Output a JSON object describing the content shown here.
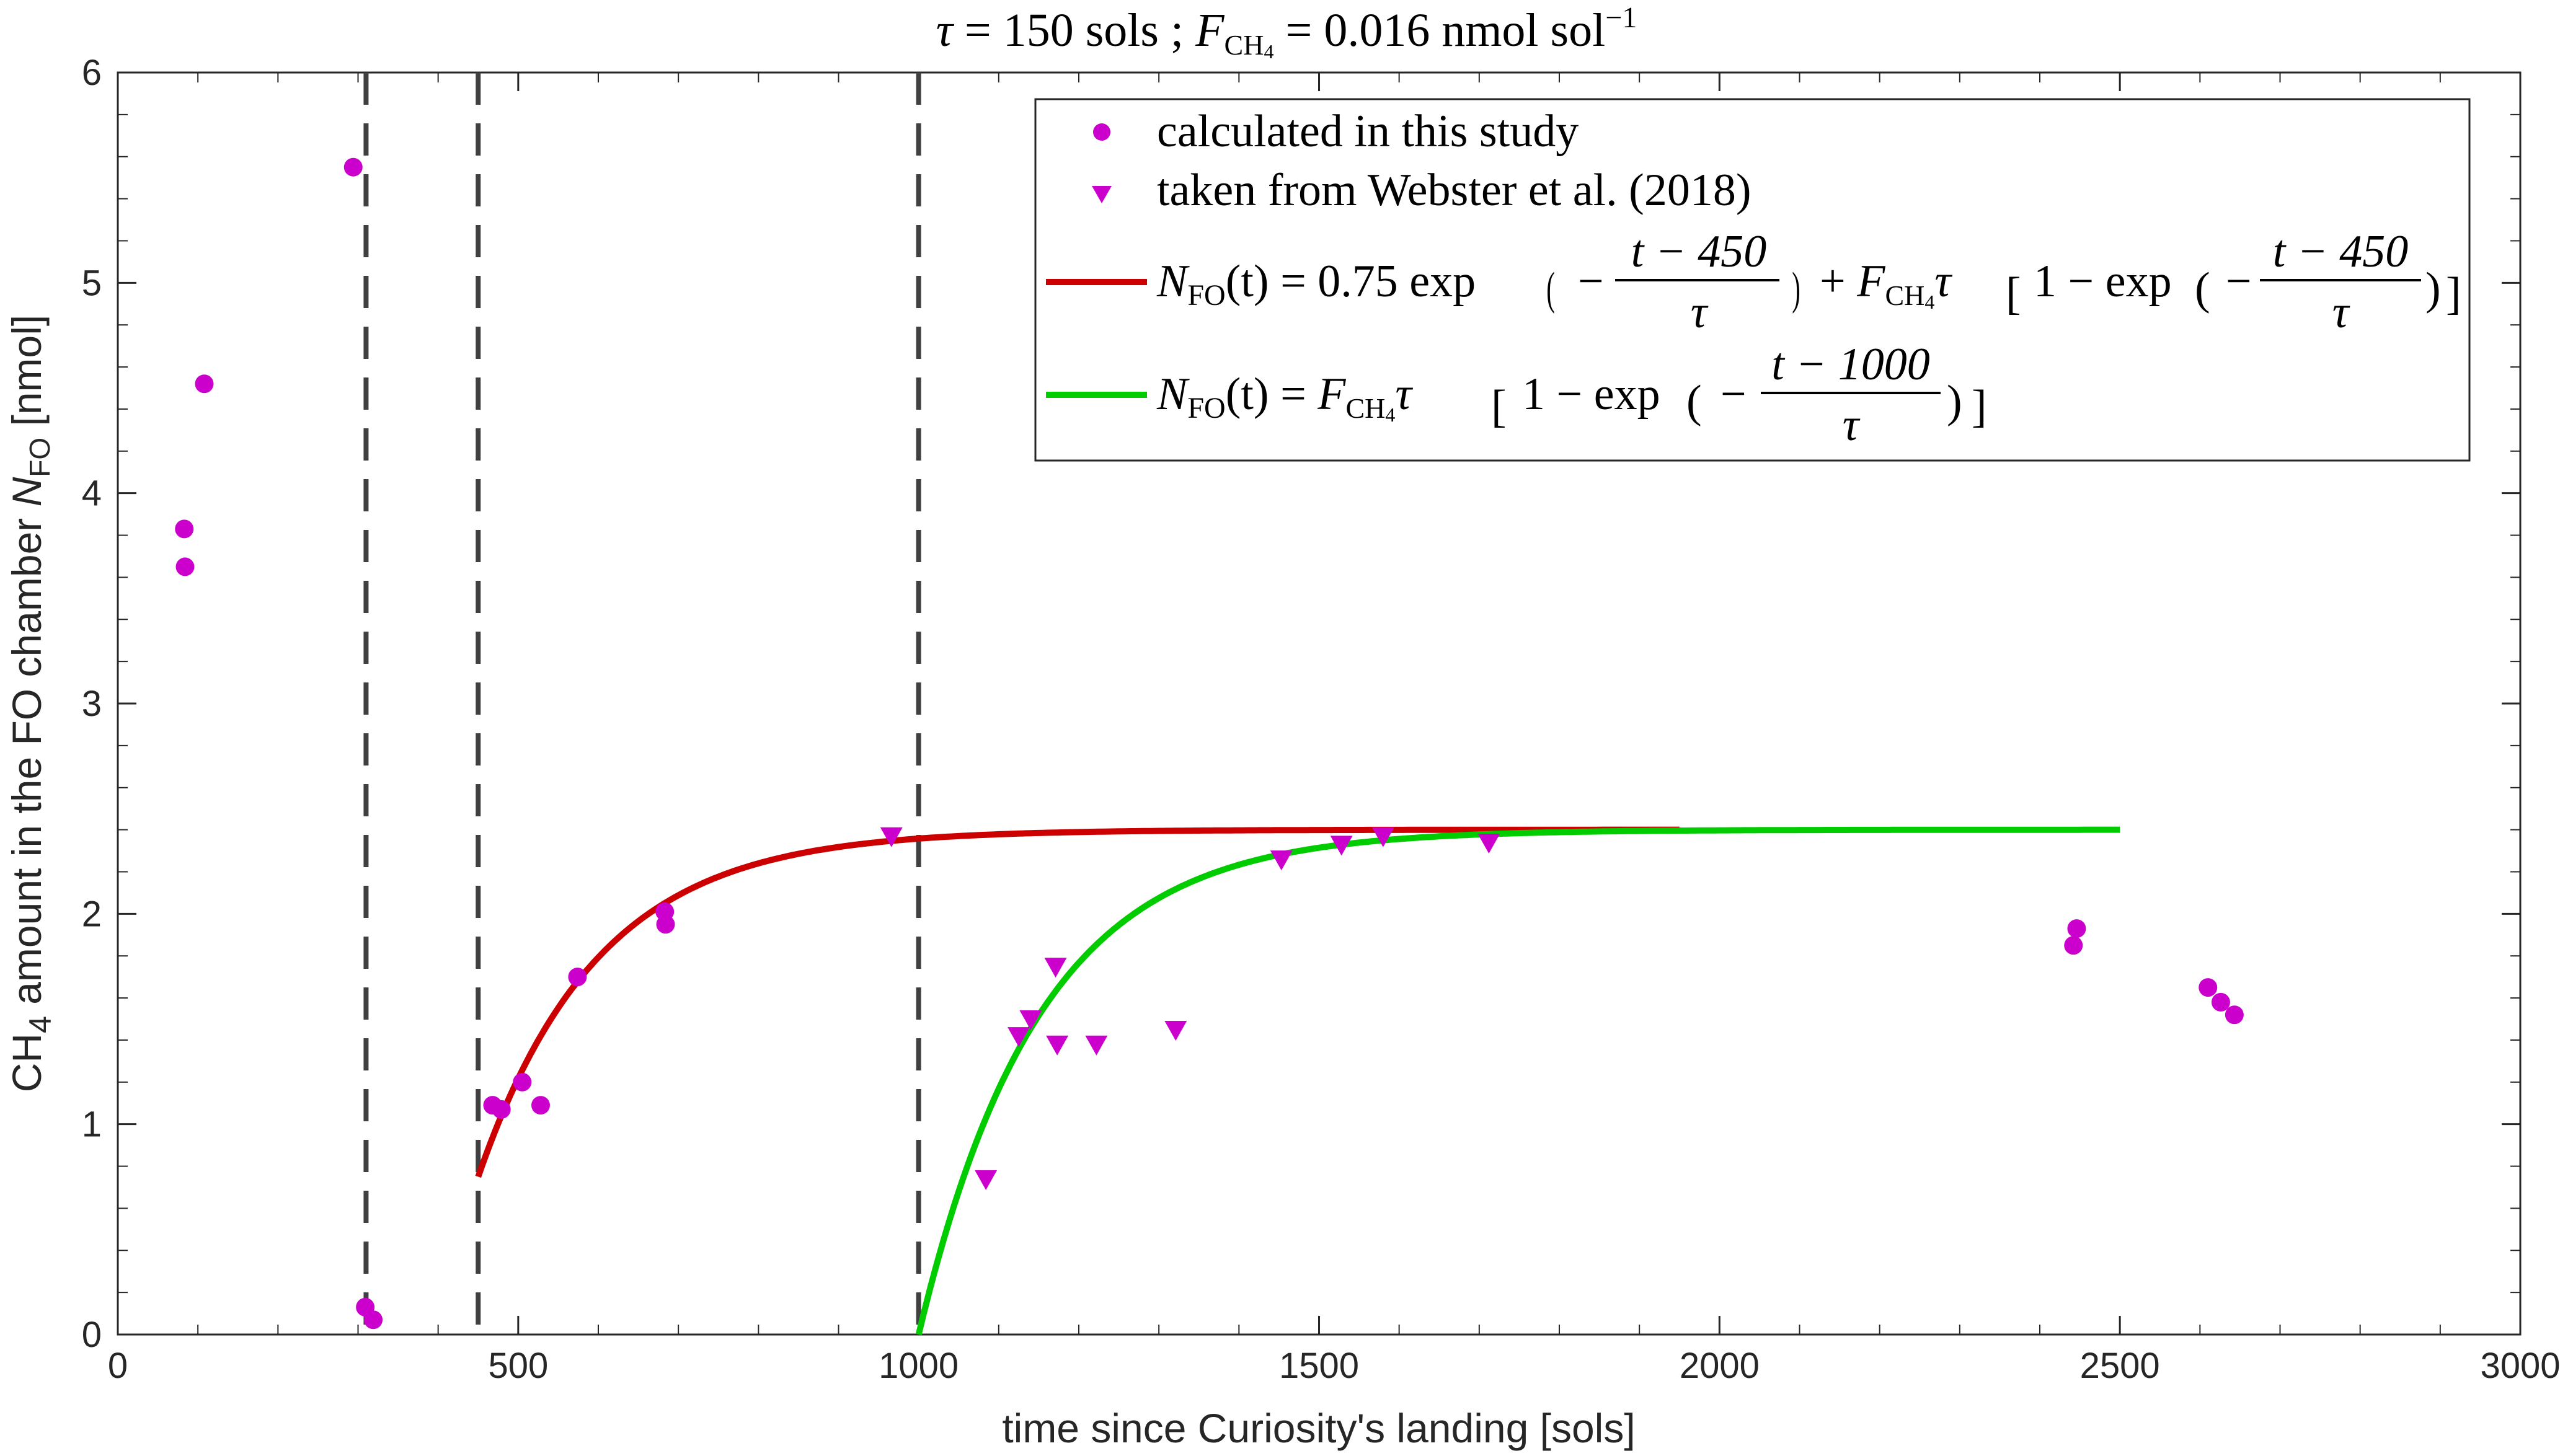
{
  "chart_data": {
    "type": "scatter",
    "title": "τ = 150 sols ;  F_CH4 = 0.016 nmol sol⁻¹",
    "title_parts": {
      "tau": "τ",
      "eq_sols": " = 150 sols ;  ",
      "F": "F",
      "sub": "CH",
      "subsub": "4",
      "eq_rate": " = 0.016 nmol sol",
      "sup": "−1"
    },
    "xlabel": "time since Curiosity's landing [sols]",
    "ylabel": {
      "pre": "CH",
      "sub": "4",
      "mid": " amount in the FO chamber ",
      "N": "N",
      "nsub": "FO",
      "post": " [nmol]"
    },
    "xlim": [
      0,
      3000
    ],
    "ylim": [
      0,
      6
    ],
    "xticks": [
      0,
      500,
      1000,
      1500,
      2000,
      2500,
      3000
    ],
    "yticks": [
      0,
      1,
      2,
      3,
      4,
      5,
      6
    ],
    "grid": false,
    "legend_placement": "top-right",
    "vlines": [
      310,
      450,
      1000
    ],
    "series": [
      {
        "name": "calculated in this study",
        "marker": "circle",
        "color": "#cc00cc",
        "x": [
          83,
          84,
          108,
          294,
          309,
          319,
          468,
          479,
          505,
          528,
          574,
          683,
          684,
          2442,
          2446,
          2610,
          2626,
          2643
        ],
        "y": [
          3.83,
          3.65,
          4.52,
          5.55,
          0.13,
          0.07,
          1.09,
          1.07,
          1.2,
          1.09,
          1.7,
          2.01,
          1.95,
          1.85,
          1.93,
          1.65,
          1.58,
          1.52
        ]
      },
      {
        "name": "taken from Webster et al. (2018)",
        "marker": "triangle-down",
        "color": "#cc00cc",
        "x": [
          966,
          1084,
          1125,
          1140,
          1171,
          1173,
          1222,
          1321,
          1453,
          1528,
          1580,
          1712
        ],
        "y": [
          2.37,
          0.74,
          1.42,
          1.5,
          1.75,
          1.38,
          1.38,
          1.45,
          2.26,
          2.33,
          2.37,
          2.34
        ]
      }
    ],
    "curves": [
      {
        "color": "#cc0000",
        "legend_parts": {
          "N": "N",
          "nsub": "FO",
          "lhs": "(t) = 0.75 exp",
          "frac_num": "t − 450",
          "frac_den": "τ",
          "plus": "+ ",
          "F": "F",
          "fsub": "CH",
          "fsubsub": "4",
          "tau": "τ",
          "one_minus": "1 − exp",
          "frac2_num": "t − 450",
          "frac2_den": "τ",
          "minus": "−"
        },
        "t0": 450,
        "a0": 0.75,
        "x_start": 450,
        "x_end": 1950
      },
      {
        "color": "#00cc00",
        "legend_parts": {
          "N": "N",
          "nsub": "FO",
          "lhs": "(t) = ",
          "F": "F",
          "fsub": "CH",
          "fsubsub": "4",
          "tau": "τ",
          "one_minus": "1 − exp",
          "frac_num": "t − 1000",
          "frac_den": "τ",
          "minus": "−"
        },
        "t0": 1000,
        "a0": 0,
        "x_start": 1000,
        "x_end": 2500
      }
    ],
    "tau": 150,
    "F_CH4": 0.016
  }
}
